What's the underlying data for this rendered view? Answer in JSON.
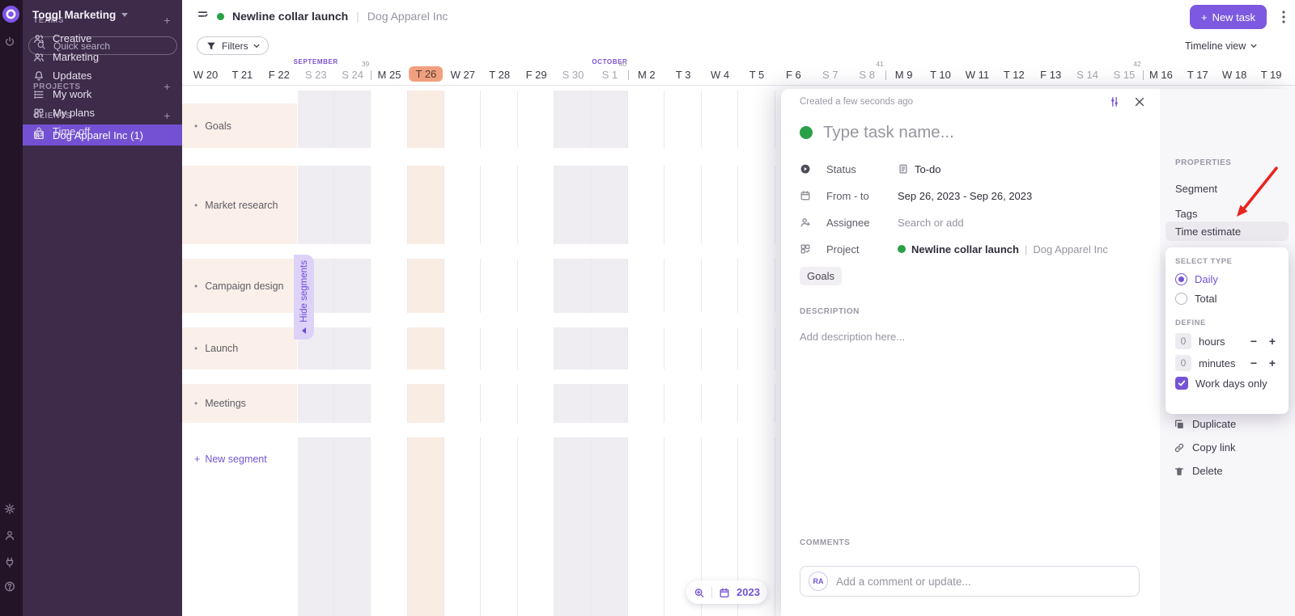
{
  "workspace": {
    "name": "Toggl Marketing"
  },
  "sidebar": {
    "search_placeholder": "Quick search",
    "nav": [
      {
        "icon": "bell",
        "label": "Updates"
      },
      {
        "icon": "list",
        "label": "My work"
      },
      {
        "icon": "grid",
        "label": "My plans"
      },
      {
        "icon": "lock",
        "label": "Time off"
      }
    ],
    "sections": [
      {
        "label": "TEAMS",
        "items": [
          {
            "icon": "people",
            "label": "Creative"
          },
          {
            "icon": "people",
            "label": "Marketing"
          }
        ]
      },
      {
        "label": "PROJECTS",
        "items": []
      },
      {
        "label": "CLIENTS",
        "items": [
          {
            "icon": "idcard",
            "label": "Dog Apparel Inc (1)",
            "selected": true
          }
        ]
      }
    ]
  },
  "topbar": {
    "project": "Newline collar launch",
    "separator": "|",
    "client": "Dog Apparel Inc",
    "new_task_label": "New task",
    "view_label": "Timeline view"
  },
  "toolbar": {
    "filters_label": "Filters"
  },
  "timeline": {
    "months": [
      {
        "label": "SEPTEMBER",
        "day_index": 3
      },
      {
        "label": "OCTOBER",
        "day_index": 11
      }
    ],
    "days": [
      {
        "label": "W 20"
      },
      {
        "label": "T 21"
      },
      {
        "label": "F 22"
      },
      {
        "label": "S 23",
        "weekend": true
      },
      {
        "label": "S 24",
        "weekend": true
      },
      {
        "label": "M 25"
      },
      {
        "label": "T 26",
        "today": true
      },
      {
        "label": "W 27"
      },
      {
        "label": "T 28"
      },
      {
        "label": "F 29"
      },
      {
        "label": "S 30",
        "weekend": true
      },
      {
        "label": "S 1",
        "weekend": true
      },
      {
        "label": "M 2"
      },
      {
        "label": "T 3"
      },
      {
        "label": "W 4"
      },
      {
        "label": "T 5"
      },
      {
        "label": "F 6"
      },
      {
        "label": "S 7",
        "weekend": true
      },
      {
        "label": "S 8",
        "weekend": true
      },
      {
        "label": "M 9"
      },
      {
        "label": "T 10"
      },
      {
        "label": "W 11"
      },
      {
        "label": "T 12"
      },
      {
        "label": "F 13"
      },
      {
        "label": "S 14",
        "weekend": true
      },
      {
        "label": "S 15",
        "weekend": true
      },
      {
        "label": "M 16"
      },
      {
        "label": "T 17"
      },
      {
        "label": "W 18"
      },
      {
        "label": "T 19"
      }
    ],
    "week_markers": [
      {
        "number": "39",
        "before_index": 5
      },
      {
        "number": "40",
        "before_index": 12
      },
      {
        "number": "41",
        "before_index": 19
      },
      {
        "number": "42",
        "before_index": 26
      }
    ],
    "footer": {
      "year": "2023"
    }
  },
  "segments": {
    "rows": [
      "Goals",
      "Market research",
      "Campaign design",
      "Launch",
      "Meetings"
    ],
    "new_segment_label": "New segment",
    "hide_label": "Hide segments"
  },
  "task": {
    "created": "Created a few seconds ago",
    "name_placeholder": "Type task name...",
    "fields": {
      "status_label": "Status",
      "status_value": "To-do",
      "dates_label": "From - to",
      "dates_value": "Sep 26, 2023 - Sep 26, 2023",
      "assignee_label": "Assignee",
      "assignee_placeholder": "Search or add",
      "project_label": "Project",
      "project_value": "Newline collar launch",
      "project_separator": "|",
      "project_client": "Dog Apparel Inc"
    },
    "segment_chip": "Goals",
    "description_label": "DESCRIPTION",
    "description_placeholder": "Add description here...",
    "comments_label": "COMMENTS",
    "comment_avatar": "RA",
    "comment_placeholder": "Add a comment or update..."
  },
  "properties": {
    "heading": "PROPERTIES",
    "items": [
      "Segment",
      "Tags",
      "Time estimate"
    ],
    "active_item": "Time estimate",
    "actions": [
      {
        "icon": "copy",
        "label": "Duplicate"
      },
      {
        "icon": "link",
        "label": "Copy link"
      },
      {
        "icon": "trash",
        "label": "Delete"
      }
    ]
  },
  "estimate_popup": {
    "select_type_label": "SELECT TYPE",
    "options": [
      {
        "label": "Daily",
        "selected": true
      },
      {
        "label": "Total",
        "selected": false
      }
    ],
    "define_label": "DEFINE",
    "inputs": [
      {
        "value": "0",
        "unit": "hours"
      },
      {
        "value": "0",
        "unit": "minutes"
      }
    ],
    "workdays_label": "Work days only",
    "workdays_checked": true
  },
  "colors": {
    "accent": "#7454d4",
    "new_task_button": "#7c59e0",
    "selected_nav": "#7351d2",
    "today_pill": "#f1a07f",
    "today_column": "#f9ece3",
    "weekend_column": "#efedf1",
    "segment_band": "#faf0e9",
    "task_green": "#2aa047",
    "annotation_arrow": "#e8241d"
  }
}
